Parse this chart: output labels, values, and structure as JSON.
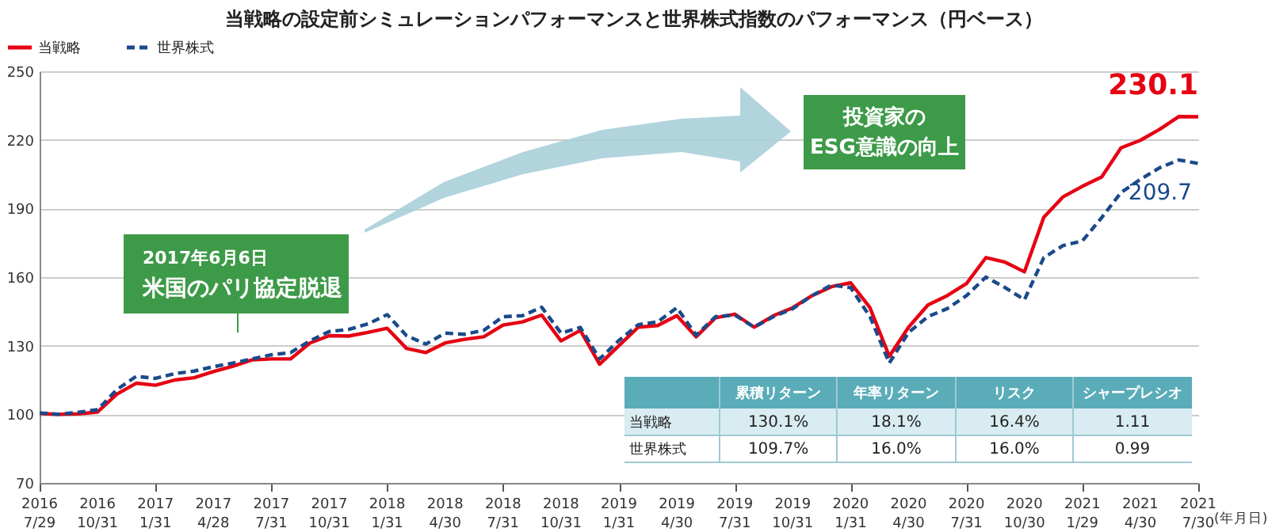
{
  "chart_data": {
    "type": "line",
    "title": "当戦略の設定前シミュレーションパフォーマンスと世界株式指数のパフォーマンス（円ベース）",
    "xlabel": "(年月日)",
    "categories": [
      "2016 7/29",
      null,
      null,
      "2016 10/31",
      null,
      null,
      "2017 1/31",
      null,
      null,
      "2017 4/28",
      null,
      null,
      "2017 7/31",
      null,
      null,
      "2017 10/31",
      null,
      null,
      "2018 1/31",
      null,
      null,
      "2018 4/30",
      null,
      null,
      "2018 7/31",
      null,
      null,
      "2018 10/31",
      null,
      null,
      "2019 1/31",
      null,
      null,
      "2019 4/30",
      null,
      null,
      "2019 7/31",
      null,
      null,
      "2019 10/31",
      null,
      null,
      "2020 1/31",
      null,
      null,
      "2020 4/30",
      null,
      null,
      "2020 7/31",
      null,
      null,
      "2020 10/30",
      null,
      null,
      "2021 1/29",
      null,
      null,
      "2021 4/30",
      null,
      null,
      "2021 7/30"
    ],
    "series": [
      {
        "name": "当戦略",
        "color": "#e60012",
        "line_style": "solid",
        "values": [
          100.4,
          100,
          100.2,
          101,
          108.8,
          113.6,
          112.7,
          115,
          116,
          118.7,
          121,
          123.8,
          124.2,
          124.2,
          131.2,
          134.4,
          134.2,
          135.8,
          137.6,
          128.8,
          127,
          131.2,
          132.8,
          133.9,
          139,
          140.4,
          143.4,
          132.1,
          136.7,
          121.9,
          130,
          138.1,
          138.8,
          143.1,
          133.9,
          142.2,
          143.8,
          138.1,
          143.1,
          146.6,
          151.9,
          155.8,
          157.5,
          146.6,
          125.4,
          138.1,
          147.8,
          151.9,
          157.2,
          168.5,
          166.5,
          162.3,
          186.1,
          195.1,
          199.7,
          203.8,
          216.5,
          219.8,
          224.6,
          230.2,
          230.1
        ]
      },
      {
        "name": "世界株式",
        "color": "#1a4a8a",
        "line_style": "dashed",
        "values": [
          100.6,
          100,
          100.9,
          102,
          110.8,
          116.6,
          115.7,
          117.8,
          118.9,
          120.8,
          122.4,
          124.2,
          126,
          127,
          132.1,
          136.2,
          137.1,
          139.5,
          143.6,
          134.4,
          130.7,
          135.5,
          135,
          136.7,
          142.7,
          143.1,
          146.8,
          135.5,
          138,
          124.2,
          132.3,
          139.2,
          140.4,
          146.6,
          134.6,
          142.7,
          143.4,
          138.1,
          142.7,
          146.2,
          151.9,
          156.5,
          155.4,
          142.7,
          122.4,
          135.8,
          142.7,
          146.2,
          151.9,
          160,
          155.4,
          150.1,
          168.5,
          173.8,
          175.8,
          186,
          197,
          202.7,
          207.8,
          211.2,
          209.7
        ]
      }
    ],
    "ylim": [
      70,
      250
    ],
    "yticks": [
      70,
      100,
      130,
      160,
      190,
      220,
      250
    ],
    "grid": "y",
    "legend": "top left",
    "marker": "none",
    "annotations": [
      "2017年6月6日",
      "米国のパリ協定脱退",
      "投資家の",
      "ESG意識の向上",
      {
        "text": "230.1",
        "x": "2021 7/30",
        "y": 230.1
      },
      {
        "text": "209.7",
        "x": "2021 7/30",
        "y": 209.7
      },
      "累積リターン",
      "年率リターン",
      "リスク",
      "シャープレシオ",
      "当戦略",
      "130.1%",
      "18.1%",
      "16.4%",
      "1.11",
      "世界株式",
      "109.7%",
      "16.0%",
      "16.0%",
      "0.99"
    ]
  }
}
